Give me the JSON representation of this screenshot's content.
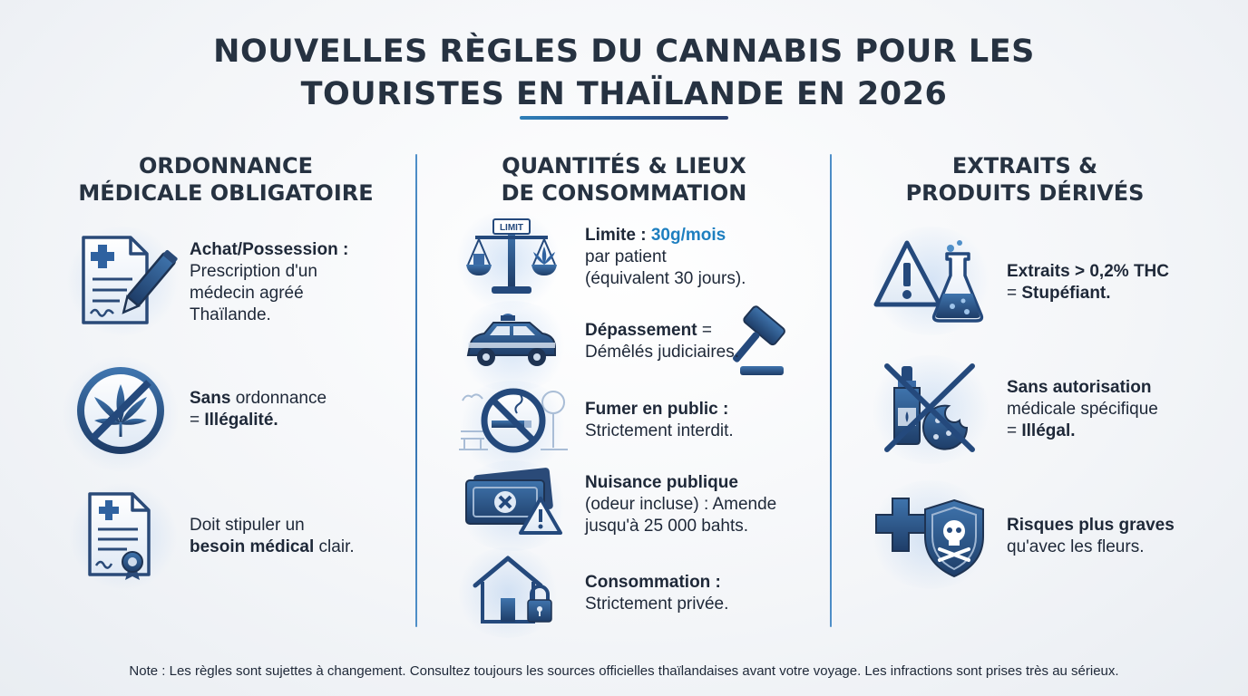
{
  "title": {
    "line1": "NOUVELLES RÈGLES DU CANNABIS POUR LES",
    "line2": "TOURISTES EN THAÏLANDE EN 2026"
  },
  "columns": [
    {
      "heading": [
        "ORDONNANCE",
        "MÉDICALE OBLIGATOIRE"
      ],
      "items": [
        {
          "icon": "prescription-pen-icon",
          "bold": "Achat/Possession :",
          "lines": [
            "Prescription d'un",
            "médecin agréé",
            "Thaïlande."
          ]
        },
        {
          "icon": "no-cannabis-icon",
          "bold1": "Sans",
          "rest1": " ordonnance",
          "prefix2": "= ",
          "bold2": "Illégalité."
        },
        {
          "icon": "medical-certificate-icon",
          "line1": "Doit stipuler un",
          "bold2": "besoin médical",
          "rest2": " clair."
        }
      ]
    },
    {
      "heading": [
        "QUANTITÉS & LIEUX",
        "DE CONSOMMATION"
      ],
      "items": [
        {
          "icon": "scale-limit-icon",
          "scale_label": "LIMIT",
          "bold": "Limite : ",
          "highlight": "30g/mois",
          "lines": [
            "par patient",
            "(équivalent 30 jours)."
          ]
        },
        {
          "icon": "police-car-gavel-icon",
          "bold": "Dépassement",
          "rest": " =",
          "line2": "Démêlés judiciaires."
        },
        {
          "icon": "no-smoking-icon",
          "bold": "Fumer en public :",
          "line2": "Strictement interdit."
        },
        {
          "icon": "fine-money-warning-icon",
          "bold": "Nuisance publique",
          "lines": [
            "(odeur incluse) : Amende",
            "jusqu'à 25 000 bahts."
          ]
        },
        {
          "icon": "house-lock-icon",
          "bold": "Consommation :",
          "line2": "Strictement privée."
        }
      ]
    },
    {
      "heading": [
        "EXTRAITS &",
        "PRODUITS DÉRIVÉS"
      ],
      "items": [
        {
          "icon": "warning-flask-icon",
          "bold1": "Extraits > 0,2% THC",
          "prefix2": "= ",
          "bold2": "Stupéfiant."
        },
        {
          "icon": "no-oil-cookie-icon",
          "bold": "Sans autorisation",
          "line2": "médicale spécifique",
          "prefix3": "= ",
          "bold3": "Illégal."
        },
        {
          "icon": "health-risk-shield-icon",
          "bold": "Risques plus graves",
          "line2": "qu'avec les fleurs."
        }
      ]
    }
  ],
  "note": "Note : Les règles sont sujettes à changement. Consultez toujours les sources officielles thaïlandaises avant votre voyage. Les infractions sont prises très au sérieux."
}
